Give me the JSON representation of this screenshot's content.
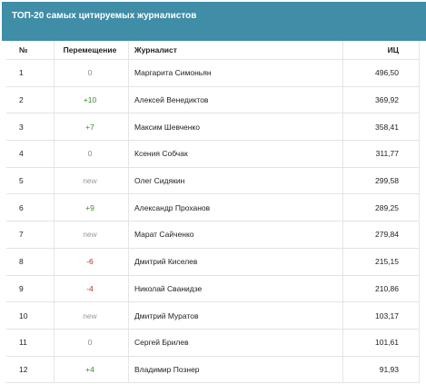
{
  "banner": {
    "title": "ТОП-20 самых цитируемых журналистов"
  },
  "table": {
    "headers": {
      "num": "№",
      "move": "Перемещение",
      "journalist": "Журналист",
      "ic": "ИЦ"
    },
    "rows": [
      {
        "num": "1",
        "move": "0",
        "name": "Маргарита Симоньян",
        "ic": "496,50"
      },
      {
        "num": "2",
        "move": "+10",
        "name": "Алексей Венедиктов",
        "ic": "369,92"
      },
      {
        "num": "3",
        "move": "+7",
        "name": "Максим Шевченко",
        "ic": "358,41"
      },
      {
        "num": "4",
        "move": "0",
        "name": "Ксения Собчак",
        "ic": "311,77"
      },
      {
        "num": "5",
        "move": "new",
        "name": "Олег Сидякин",
        "ic": "299,58"
      },
      {
        "num": "6",
        "move": "+9",
        "name": "Александр Проханов",
        "ic": "289,25"
      },
      {
        "num": "7",
        "move": "new",
        "name": "Марат Сайченко",
        "ic": "279,84"
      },
      {
        "num": "8",
        "move": "-6",
        "name": "Дмитрий Киселев",
        "ic": "215,15"
      },
      {
        "num": "9",
        "move": "-4",
        "name": "Николай Сванидзе",
        "ic": "210,86"
      },
      {
        "num": "10",
        "move": "new",
        "name": "Дмитрий Муратов",
        "ic": "103,17"
      },
      {
        "num": "11",
        "move": "0",
        "name": "Сергей Брилев",
        "ic": "101,61"
      },
      {
        "num": "12",
        "move": "+4",
        "name": "Владимир Познер",
        "ic": "91,93"
      }
    ]
  }
}
